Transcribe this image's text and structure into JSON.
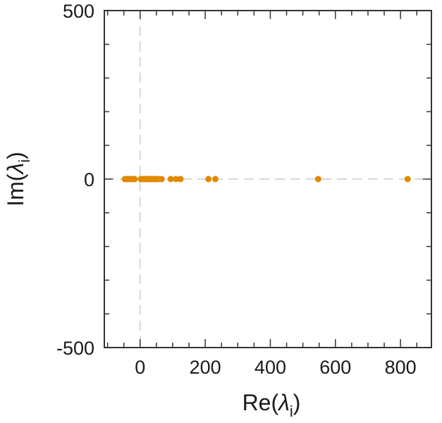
{
  "chart_data": {
    "type": "scatter",
    "title": "",
    "xlabel_main": "Re(",
    "xlabel_symbol": "λ",
    "xlabel_sub": "i",
    "xlabel_close": ")",
    "ylabel_main": "Im(",
    "ylabel_symbol": "λ",
    "ylabel_sub": "i",
    "ylabel_close": ")",
    "xlim": [
      -110,
      895
    ],
    "ylim": [
      -500,
      500
    ],
    "x_ticks": [
      0,
      200,
      400,
      600,
      800
    ],
    "x_tick_labels": [
      "0",
      "200",
      "400",
      "600",
      "800"
    ],
    "x_minor_ticks": [
      -100,
      -50,
      0,
      50,
      100,
      150,
      200,
      250,
      300,
      350,
      400,
      450,
      500,
      550,
      600,
      650,
      700,
      750,
      800,
      850
    ],
    "y_ticks": [
      -500,
      0,
      500
    ],
    "y_tick_labels": [
      "-500",
      "0",
      "500"
    ],
    "y_minor_ticks": [
      -400,
      -300,
      -200,
      -100,
      100,
      200,
      300,
      400
    ],
    "grid": false,
    "reference_lines": {
      "x": 0,
      "y": 0,
      "style": "dashed"
    },
    "marker_color": "#e08a00",
    "axis_color": "#333333",
    "reference_color": "#cccccc",
    "series": [
      {
        "x": [
          -47,
          -41,
          -35,
          -30,
          -25,
          -20,
          -17,
          2,
          6,
          10,
          14,
          18,
          22,
          26,
          30,
          34,
          38,
          42,
          46,
          50,
          56,
          66,
          94,
          110,
          124,
          210,
          231,
          547,
          822
        ],
        "y": [
          0,
          0,
          0,
          0,
          0,
          0,
          0,
          0,
          0,
          0,
          0,
          0,
          0,
          0,
          0,
          0,
          0,
          0,
          0,
          0,
          0,
          0,
          0,
          0,
          0,
          0,
          0,
          0,
          0
        ]
      }
    ]
  }
}
